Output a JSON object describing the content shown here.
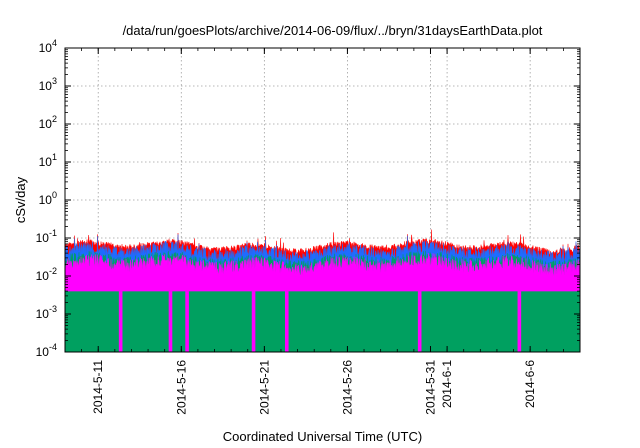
{
  "chart_data": {
    "type": "area",
    "title": "/data/run/goesPlots/archive/2014-06-09/flux/../bryn/31daysEarthData.plot",
    "xlabel": "Coordinated Universal Time (UTC)",
    "ylabel": "cSv/day",
    "yscale": "log",
    "ylim": [
      0.0001,
      10000
    ],
    "xlim": [
      "2014-05-09",
      "2014-06-09"
    ],
    "grid": true,
    "y_ticks": [
      {
        "value": 0.0001,
        "base": "10",
        "exp": "-4"
      },
      {
        "value": 0.001,
        "base": "10",
        "exp": "-3"
      },
      {
        "value": 0.01,
        "base": "10",
        "exp": "-2"
      },
      {
        "value": 0.1,
        "base": "10",
        "exp": "-1"
      },
      {
        "value": 1,
        "base": "10",
        "exp": "0"
      },
      {
        "value": 10,
        "base": "10",
        "exp": "1"
      },
      {
        "value": 100,
        "base": "10",
        "exp": "2"
      },
      {
        "value": 1000,
        "base": "10",
        "exp": "3"
      },
      {
        "value": 10000,
        "base": "10",
        "exp": "4"
      }
    ],
    "x_ticks": [
      "2014-5-11",
      "2014-5-16",
      "2014-5-21",
      "2014-5-26",
      "2014-5-31",
      "2014-6-1",
      "2014-6-6"
    ],
    "colors": {
      "red": "#ff0000",
      "blue": "#1e6cff",
      "green": "#00a060",
      "magenta": "#ff00ff"
    },
    "series": [
      {
        "color": "red",
        "typical_value": 0.06
      },
      {
        "color": "blue",
        "typical_value": 0.045
      },
      {
        "color": "green",
        "typical_value": 0.025
      },
      {
        "color": "magenta",
        "typical_value": 0.02,
        "floor": 0.004
      }
    ],
    "dropouts": [
      "2014-05-12",
      "2014-05-15",
      "2014-05-16",
      "2014-05-20",
      "2014-05-22",
      "2014-05-30",
      "2014-06-05"
    ]
  }
}
